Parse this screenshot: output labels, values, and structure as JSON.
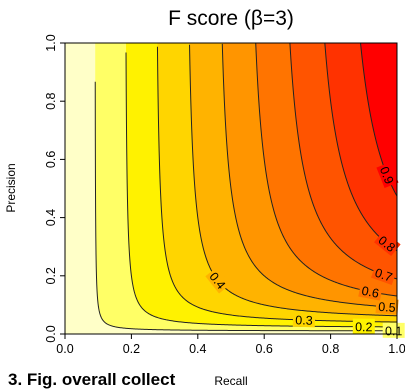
{
  "chart_data": {
    "type": "contour",
    "title": "F score (β=3)",
    "xlabel": "Recall",
    "ylabel": "Precision",
    "beta": 3,
    "xlim": [
      0,
      1
    ],
    "ylim": [
      0,
      1
    ],
    "x_ticks": [
      "0.0",
      "0.2",
      "0.4",
      "0.6",
      "0.8",
      "1.0"
    ],
    "y_ticks": [
      "0.0",
      "0.2",
      "0.4",
      "0.6",
      "0.8",
      "1.0"
    ],
    "levels": [
      0.1,
      0.2,
      0.3,
      0.4,
      0.5,
      0.6,
      0.7,
      0.8,
      0.9
    ],
    "level_labels": [
      "0.1",
      "0.2",
      "0.3",
      "0.4",
      "0.5",
      "0.6",
      "0.7",
      "0.8",
      "0.9"
    ],
    "fill_colors": [
      "#FFFFC8",
      "#FFFF66",
      "#FFF200",
      "#FFD500",
      "#FFB300",
      "#FF9500",
      "#FF7400",
      "#FF5400",
      "#FF3200",
      "#FF0000"
    ],
    "grid": false
  },
  "caption": "3. Fig. overall collect"
}
